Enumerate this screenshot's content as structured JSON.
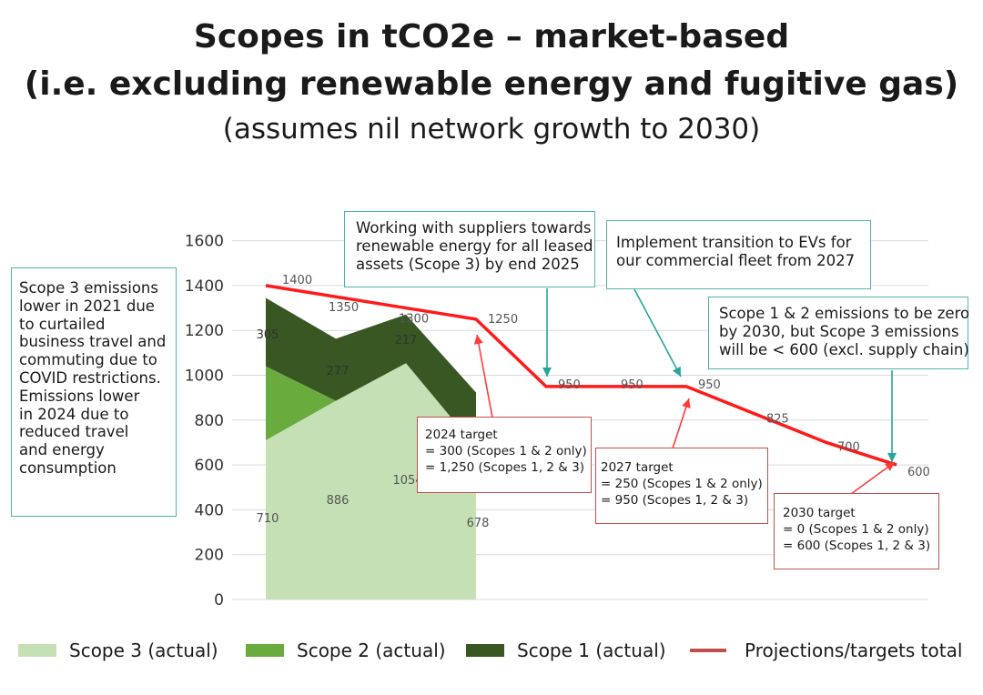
{
  "title": {
    "line1": "Scopes in tCO2e – market-based",
    "line2": "(i.e. excluding renewable energy and fugitive gas)",
    "line3": "(assumes nil network growth to 2030)"
  },
  "chart_data": {
    "type": "area",
    "ylim": [
      0,
      1700
    ],
    "yticks": [
      "0",
      "200",
      "400",
      "600",
      "800",
      "1000",
      "1200",
      "1400",
      "1600"
    ],
    "grid": true,
    "x_slots": 10,
    "actual_periods": 4,
    "series": [
      {
        "name": "Scope 3 (actual)",
        "kind": "area",
        "color": "#c5e0b4",
        "values": [
          710,
          886,
          1054,
          678
        ]
      },
      {
        "name": "Scope 2 (actual)",
        "kind": "area",
        "color": "#6aab3e",
        "values": [
          330,
          0,
          0,
          0
        ]
      },
      {
        "name": "Scope 1 (actual)",
        "kind": "area",
        "color": "#385723",
        "values": [
          305,
          277,
          217,
          245
        ]
      },
      {
        "name": "Projections/targets total",
        "kind": "line",
        "color": "#ff1a1a",
        "values": [
          1400,
          1350,
          1300,
          1250,
          950,
          950,
          950,
          825,
          700,
          600
        ]
      }
    ],
    "data_labels": {
      "scope3": [
        "710",
        "886",
        "1054",
        "678"
      ],
      "scope1": [
        "305",
        "277",
        "217"
      ],
      "total": [
        "1400",
        "1350",
        "1300",
        "1250",
        "950",
        "950",
        "950",
        "825",
        "700",
        "600"
      ]
    }
  },
  "annotations": {
    "left_note": [
      "Scope 3 emissions",
      "lower in 2021 due",
      "to curtailed",
      "business travel and",
      "commuting due to",
      "COVID restrictions.",
      "Emissions lower",
      "in 2024 due to",
      "reduced travel",
      "and energy",
      "consumption"
    ],
    "suppliers_note": [
      "Working with suppliers towards",
      "renewable energy for all leased",
      "assets (Scope 3) by end 2025"
    ],
    "evs_note": [
      "Implement transition to EVs for",
      "our commercial fleet from 2027"
    ],
    "scope_zero_note": [
      "Scope 1 & 2 emissions to be zero",
      "by 2030, but Scope 3 emissions",
      "will be < 600 (excl. supply chain)"
    ],
    "target_2024": [
      "2024 target",
      "= 300 (Scopes 1 & 2 only)",
      "= 1,250 (Scopes 1, 2 & 3)"
    ],
    "target_2027": [
      "2027 target",
      "= 250 (Scopes 1 & 2 only)",
      "= 950 (Scopes 1, 2 & 3)"
    ],
    "target_2030": [
      "2030 target",
      "= 0 (Scopes 1 & 2 only)",
      "= 600 (Scopes 1, 2 & 3)"
    ]
  },
  "legend": {
    "scope3": "Scope 3 (actual)",
    "scope2": "Scope 2 (actual)",
    "scope1": "Scope 1 (actual)",
    "total": "Projections/targets total"
  }
}
